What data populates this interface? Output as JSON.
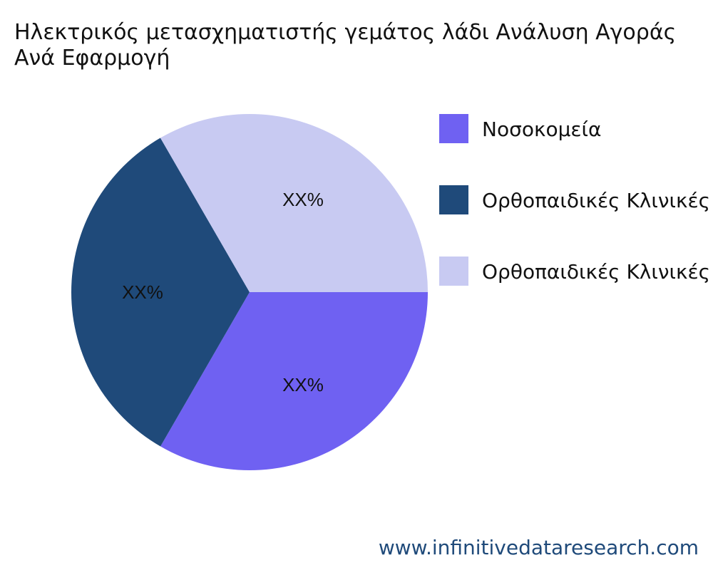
{
  "chart_data": {
    "type": "pie",
    "title": "Ηλεκτρικός μετασχηματιστής γεμάτος λάδι Ανάλυση Αγοράς Ανά Εφαρμογή",
    "slices": [
      {
        "label": "Νοσοκομεία",
        "value": 33.33,
        "data_label": "XX%",
        "color": "#6f61f2"
      },
      {
        "label": "Ορθοπαιδικές Κλινικές",
        "value": 33.33,
        "data_label": "XX%",
        "color": "#1f4a7a"
      },
      {
        "label": "Ορθοπαιδικές Κλινικές",
        "value": 33.34,
        "data_label": "XX%",
        "color": "#c8caf2"
      }
    ],
    "start_direction": "east, clockwise",
    "legend_placement": "right"
  },
  "footer": {
    "watermark": "www.infinitivedataresearch.com"
  }
}
